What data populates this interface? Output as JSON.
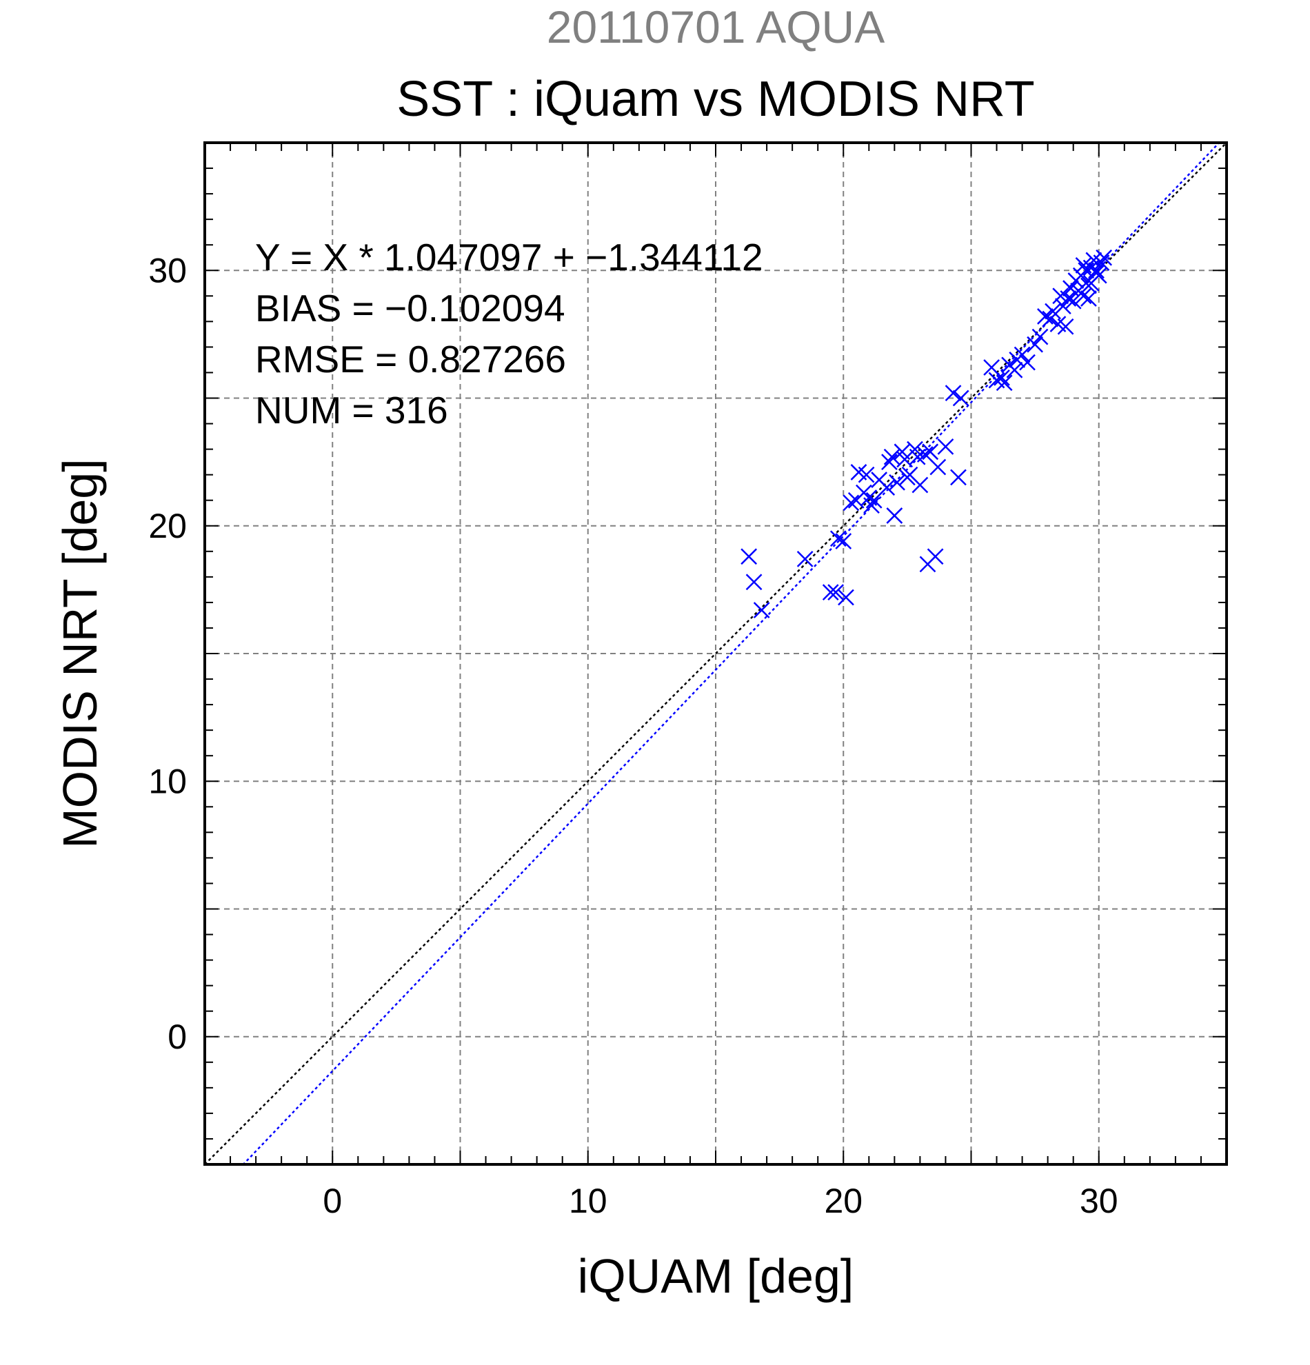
{
  "header": {
    "date_title": "20110701 AQUA",
    "main_title": "SST : iQuam vs MODIS NRT"
  },
  "stats": {
    "equation": "Y = X * 1.047097 + −1.344112",
    "bias": "BIAS = −0.102094",
    "rmse": "RMSE = 0.827266",
    "num": "NUM = 316"
  },
  "chart_data": {
    "type": "scatter",
    "xlabel": "iQUAM [deg]",
    "ylabel": "MODIS NRT [deg]",
    "xlim": [
      -5,
      35
    ],
    "ylim": [
      -5,
      35
    ],
    "xticks": [
      "0",
      "10",
      "20",
      "30"
    ],
    "yticks": [
      "0",
      "10",
      "20",
      "30"
    ],
    "grid": true,
    "marker": "x",
    "colors": {
      "points": "#0000ff",
      "identity_line": "#000000",
      "fit_line": "#0000ff",
      "grid": "#808080"
    },
    "fit": {
      "slope": 1.047097,
      "intercept": -1.344112
    },
    "x": [
      16.3,
      16.5,
      16.8,
      18.5,
      19.5,
      19.7,
      19.8,
      20.1,
      20.0,
      20.3,
      20.5,
      20.8,
      21.0,
      21.2,
      20.6,
      20.9,
      21.1,
      21.4,
      21.7,
      21.9,
      22.1,
      22.3,
      22.6,
      22.8,
      23.0,
      23.2,
      22.5,
      22.9,
      23.4,
      23.7,
      24.0,
      24.5,
      22.4,
      22.0,
      21.8,
      24.3,
      24.6,
      23.3,
      23.6,
      25.8,
      26.0,
      26.2,
      26.5,
      26.8,
      27.0,
      27.2,
      26.3,
      26.7,
      27.5,
      27.7,
      27.9,
      28.2,
      28.4,
      28.6,
      28.8,
      28.1,
      28.5,
      28.9,
      29.1,
      29.3,
      29.5,
      29.7,
      29.9,
      30.1,
      29.2,
      29.4,
      29.6,
      29.8,
      30.0,
      30.2,
      29.0,
      29.4,
      29.7,
      29.9,
      28.7,
      29.6
    ],
    "y": [
      18.8,
      17.8,
      16.7,
      18.7,
      17.4,
      17.4,
      19.5,
      17.2,
      19.4,
      20.9,
      21.0,
      21.3,
      21.1,
      21.0,
      22.1,
      22.0,
      20.8,
      21.8,
      21.5,
      22.7,
      21.7,
      22.9,
      22.0,
      23.0,
      21.6,
      22.8,
      21.9,
      22.7,
      22.9,
      22.3,
      23.1,
      21.9,
      22.6,
      20.4,
      22.5,
      25.2,
      25.0,
      18.5,
      18.8,
      26.2,
      25.7,
      25.8,
      26.3,
      26.5,
      26.7,
      26.4,
      25.6,
      26.1,
      27.1,
      27.4,
      28.2,
      28.4,
      27.9,
      28.6,
      28.9,
      28.1,
      29.0,
      29.3,
      29.6,
      29.8,
      30.0,
      30.1,
      29.9,
      30.3,
      29.2,
      30.2,
      29.4,
      30.4,
      29.8,
      30.5,
      28.8,
      29.0,
      29.5,
      30.0,
      27.8,
      28.9
    ]
  }
}
